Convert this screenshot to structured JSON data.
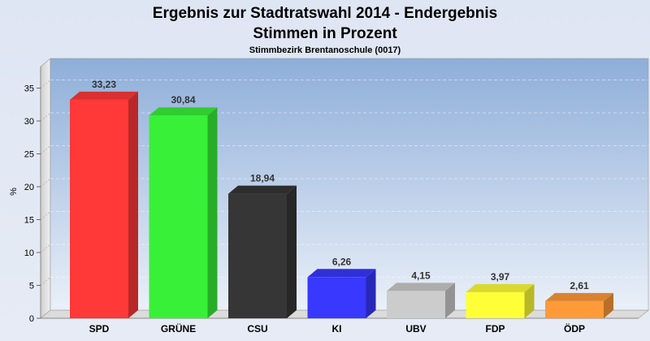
{
  "chart_data": {
    "type": "bar",
    "title": "Ergebnis zur Stadtratswahl 2014 - Endergebnis",
    "subtitle": "Stimmen in Prozent",
    "caption": "Stimmbezirk Brentanoschule (0017)",
    "ylabel": "%",
    "xlabel": "",
    "ylim": [
      0,
      40
    ],
    "yticks": [
      "0",
      "5",
      "10",
      "15",
      "20",
      "25",
      "30",
      "35"
    ],
    "grid": true,
    "categories": [
      "SPD",
      "GRÜNE",
      "CSU",
      "KI",
      "UBV",
      "FDP",
      "ÖDP"
    ],
    "values": [
      33.23,
      30.84,
      18.94,
      6.26,
      4.15,
      3.97,
      2.61
    ],
    "value_labels": [
      "33,23",
      "30,84",
      "18,94",
      "6,26",
      "4,15",
      "3,97",
      "2,61"
    ],
    "colors": [
      "#ff3838",
      "#38f038",
      "#363636",
      "#3838ff",
      "#cccccc",
      "#ffff38",
      "#ff9a38"
    ]
  }
}
